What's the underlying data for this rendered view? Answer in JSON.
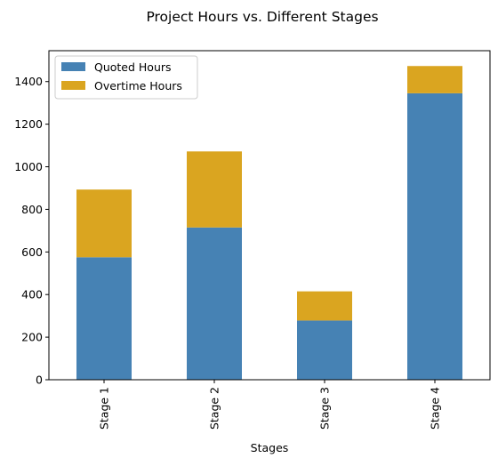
{
  "chart_data": {
    "type": "bar",
    "stacked": true,
    "title": "Project Hours vs. Different Stages",
    "xlabel": "Stages",
    "ylabel": "",
    "categories": [
      "Stage 1",
      "Stage 2",
      "Stage 3",
      "Stage 4"
    ],
    "series": [
      {
        "name": "Quoted Hours",
        "color": "#4682b4",
        "values": [
          575,
          715,
          278,
          1345
        ]
      },
      {
        "name": "Overtime Hours",
        "color": "#daa520",
        "values": [
          318,
          357,
          137,
          128
        ]
      }
    ],
    "ylim": [
      0,
      1545
    ],
    "yticks": [
      0,
      200,
      400,
      600,
      800,
      1000,
      1200,
      1400
    ],
    "grid": false,
    "legend_position": "top-left"
  }
}
